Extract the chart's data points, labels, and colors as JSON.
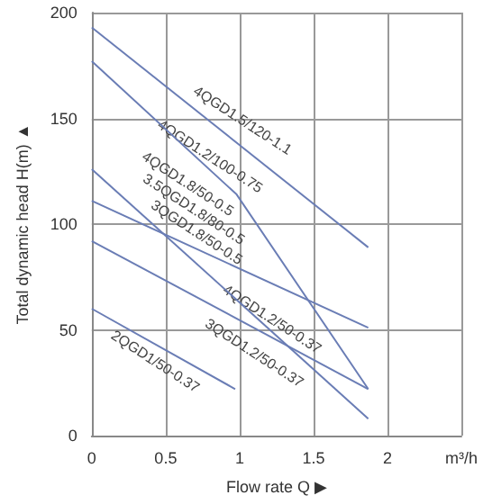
{
  "chart_data": {
    "type": "line",
    "xlabel": "Flow rate Q ▶",
    "ylabel": "Total dynamic head H(m) ▲",
    "series": [
      {
        "color": "#6a7db5",
        "x": [
          0,
          1.87
        ],
        "values": [
          193,
          89
        ]
      },
      {
        "color": "#6a7db5",
        "x": [
          0,
          0.98,
          1.87
        ],
        "values": [
          177,
          114,
          22
        ]
      },
      {
        "color": "#6a7db5",
        "x": [
          0,
          1.87
        ],
        "values": [
          126,
          8
        ]
      },
      {
        "color": "#6a7db5",
        "x": [
          0,
          1.87
        ],
        "values": [
          111,
          51
        ]
      },
      {
        "color": "#6a7db5",
        "x": [
          0,
          1.87
        ],
        "values": [
          92,
          22
        ]
      },
      {
        "color": "#6a7db5",
        "x": [
          0,
          0.97
        ],
        "values": [
          60,
          22
        ]
      }
    ],
    "annotations": [
      "4QGD1.5/120-1.1",
      "4QGD1.2/100-0.75",
      "4QGD1.8/50-0.5",
      "3.5QGD1.8/80-0.5",
      "3QGD1.8/50-0.5",
      "4QGD1.2/50-0.37",
      "3QGD1.2/50-0.37",
      "2QGD1/50-0.37"
    ],
    "xlim": [
      0,
      2.5
    ],
    "xticks": [
      0,
      0.5,
      1,
      1.5,
      2,
      {
        "value": 2.5,
        "label": "m³/h"
      }
    ],
    "ylim": [
      0,
      200
    ],
    "yticks": [
      0,
      50,
      100,
      150,
      200
    ],
    "grid": true,
    "marker": "none",
    "line_style": "solid"
  }
}
